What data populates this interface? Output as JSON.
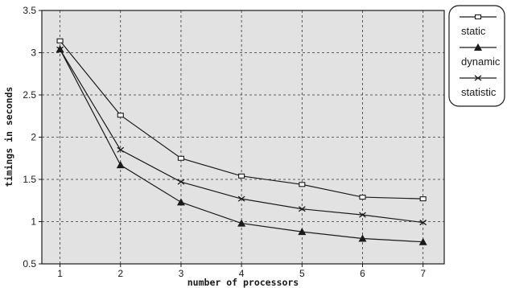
{
  "chart_data": {
    "type": "line",
    "xlabel": "number of processors",
    "ylabel": "timings in seconds",
    "xlim": [
      0.7,
      7.35
    ],
    "ylim": [
      0.5,
      3.5
    ],
    "x_ticks": [
      1,
      2,
      3,
      4,
      5,
      6,
      7
    ],
    "y_ticks": [
      "0.5",
      "1",
      "1.5",
      "2",
      "2.5",
      "3",
      "3.5"
    ],
    "grid": true,
    "legend_position": "right",
    "background": "#e2e2e2",
    "series": [
      {
        "name": "static",
        "marker": "square",
        "x": [
          1,
          2,
          3,
          4,
          5,
          6,
          7
        ],
        "y": [
          3.14,
          2.26,
          1.75,
          1.54,
          1.44,
          1.29,
          1.27
        ]
      },
      {
        "name": "dynamic",
        "marker": "triangle",
        "x": [
          1,
          2,
          3,
          4,
          5,
          6,
          7
        ],
        "y": [
          3.04,
          1.67,
          1.23,
          0.98,
          0.88,
          0.8,
          0.76
        ]
      },
      {
        "name": "statistic",
        "marker": "cross",
        "x": [
          1,
          2,
          3,
          4,
          5,
          6,
          7
        ],
        "y": [
          3.04,
          1.85,
          1.47,
          1.27,
          1.15,
          1.08,
          0.99
        ]
      }
    ]
  }
}
